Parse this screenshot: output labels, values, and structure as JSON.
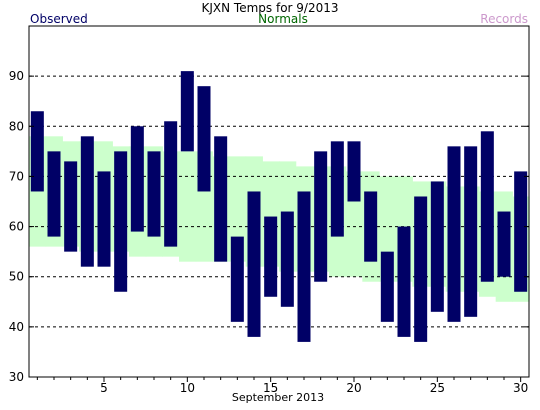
{
  "header": {
    "title": "KJXN Temps for 9/2013",
    "legend_observed": "Observed",
    "legend_normals": "Normals",
    "legend_records": "Records"
  },
  "colors": {
    "observed": "#000066",
    "normals_band": "#ccffcc",
    "normals_text": "#006600",
    "records_text": "#cc99cc",
    "title": "#000000",
    "gridline": "#000000"
  },
  "chart_data": {
    "type": "bar",
    "title": "KJXN Temps for 9/2013",
    "xlabel": "September 2013",
    "ylabel": "",
    "xlim": [
      0.5,
      30.5
    ],
    "ylim": [
      30,
      100
    ],
    "x_ticks": [
      5,
      10,
      15,
      20,
      25,
      30
    ],
    "y_ticks": [
      30,
      40,
      50,
      60,
      70,
      80,
      90
    ],
    "grid": "horizontal dashed",
    "legend": "top (left: Observed, center: Normals, right: Records)",
    "days": [
      1,
      2,
      3,
      4,
      5,
      6,
      7,
      8,
      9,
      10,
      11,
      12,
      13,
      14,
      15,
      16,
      17,
      18,
      19,
      20,
      21,
      22,
      23,
      24,
      25,
      26,
      27,
      28,
      29,
      30
    ],
    "series": [
      {
        "name": "Observed",
        "kind": "floating bars (daily low to high)",
        "high": [
          83,
          75,
          73,
          78,
          71,
          75,
          80,
          75,
          81,
          91,
          88,
          78,
          58,
          67,
          62,
          63,
          67,
          75,
          77,
          77,
          67,
          55,
          60,
          66,
          69,
          76,
          76,
          79,
          63,
          71
        ],
        "low": [
          67,
          58,
          55,
          52,
          52,
          47,
          59,
          58,
          56,
          75,
          67,
          53,
          41,
          38,
          46,
          44,
          37,
          49,
          58,
          65,
          53,
          41,
          38,
          37,
          43,
          41,
          42,
          49,
          50,
          47
        ]
      },
      {
        "name": "Normals",
        "kind": "band (normal low to normal high)",
        "high": [
          78,
          78,
          77,
          77,
          77,
          76,
          76,
          76,
          75,
          75,
          75,
          74,
          74,
          74,
          73,
          73,
          72,
          72,
          72,
          71,
          71,
          70,
          70,
          69,
          69,
          68,
          68,
          67,
          67,
          66
        ],
        "low": [
          56,
          56,
          56,
          55,
          55,
          55,
          54,
          54,
          54,
          53,
          53,
          53,
          53,
          52,
          52,
          51,
          51,
          51,
          50,
          50,
          49,
          49,
          49,
          48,
          48,
          47,
          47,
          46,
          45,
          45
        ]
      }
    ]
  }
}
